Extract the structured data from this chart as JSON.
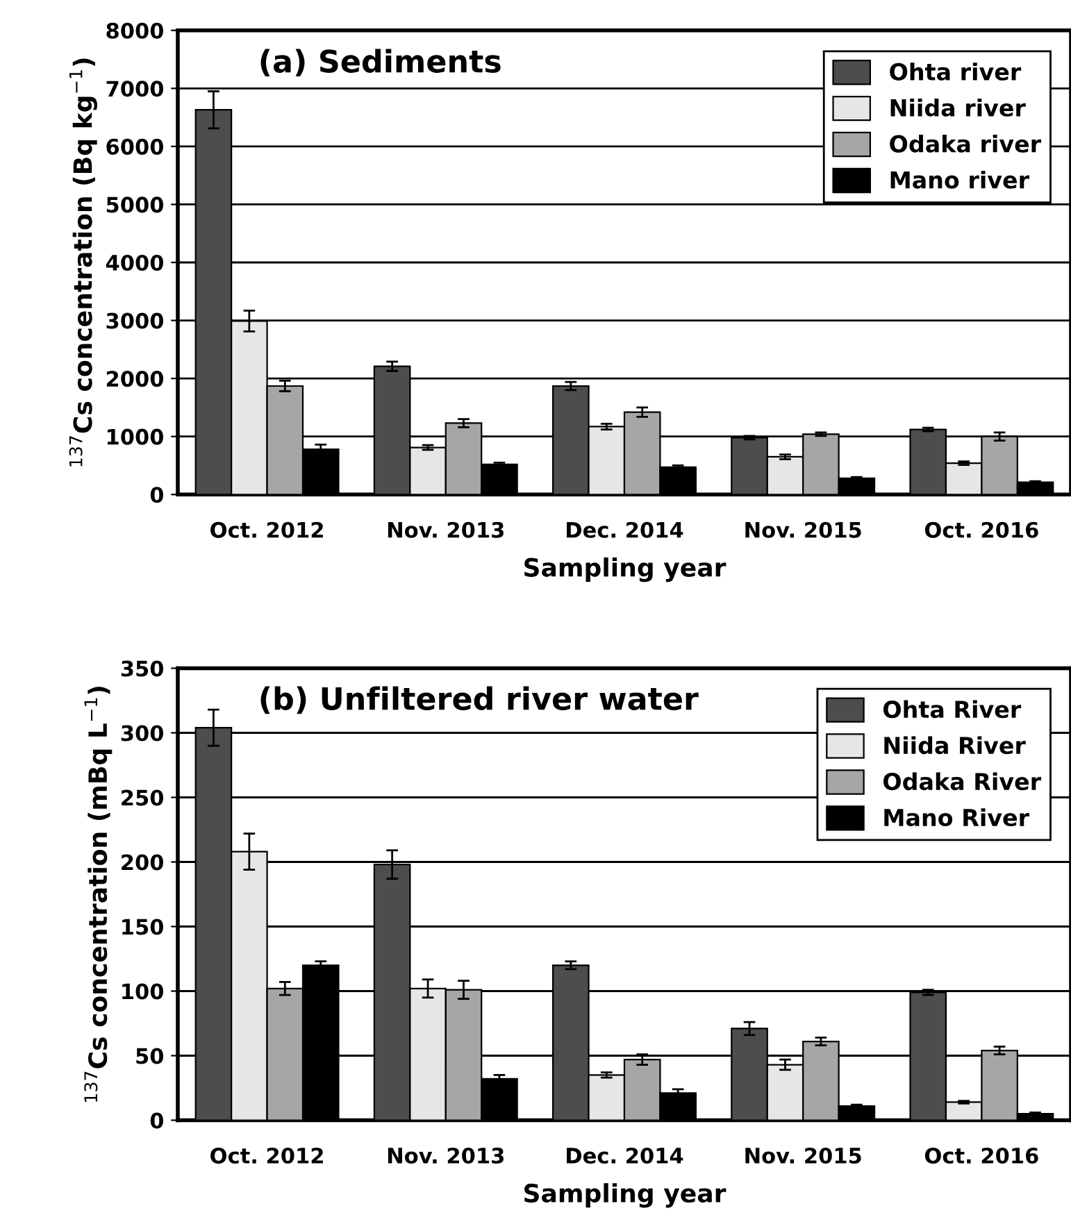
{
  "chart_data": [
    {
      "type": "bar",
      "title": "(a) Sediments",
      "xlabel": "Sampling year",
      "ylabel": "$^{137}$Cs concentration (Bq kg$^{−1}$)",
      "categories": [
        "Oct. 2012",
        "Nov. 2013",
        "Dec. 2014",
        "Nov. 2015",
        "Oct. 2016"
      ],
      "series": [
        {
          "name": "Ohta river",
          "color": "#4d4d4d",
          "values": [
            6630,
            2210,
            1870,
            980,
            1120
          ],
          "errors": [
            320,
            80,
            70,
            30,
            30
          ]
        },
        {
          "name": "Niida river",
          "color": "#e6e6e6",
          "values": [
            2990,
            810,
            1170,
            650,
            540
          ],
          "errors": [
            180,
            40,
            50,
            40,
            30
          ]
        },
        {
          "name": "Odaka river",
          "color": "#a6a6a6",
          "values": [
            1870,
            1230,
            1420,
            1040,
            1000
          ],
          "errors": [
            90,
            70,
            80,
            30,
            70
          ]
        },
        {
          "name": "Mano river",
          "color": "#000000",
          "values": [
            780,
            520,
            470,
            280,
            210
          ],
          "errors": [
            80,
            30,
            30,
            20,
            20
          ]
        }
      ],
      "ylim": [
        0,
        8000
      ],
      "yticks": [
        0,
        1000,
        2000,
        3000,
        4000,
        5000,
        6000,
        7000,
        8000
      ],
      "grid": "y",
      "legend": "top right"
    },
    {
      "type": "bar",
      "title": "(b) Unfiltered river water",
      "xlabel": "Sampling year",
      "ylabel": "$^{137}$Cs concentration (mBq L$^{−1}$)",
      "categories": [
        "Oct. 2012",
        "Nov. 2013",
        "Dec. 2014",
        "Nov. 2015",
        "Oct. 2016"
      ],
      "series": [
        {
          "name": "Ohta River",
          "color": "#4d4d4d",
          "values": [
            304,
            198,
            120,
            71,
            99
          ],
          "errors": [
            14,
            11,
            3,
            5,
            2
          ]
        },
        {
          "name": "Niida River",
          "color": "#e6e6e6",
          "values": [
            208,
            102,
            35,
            43,
            14
          ],
          "errors": [
            14,
            7,
            2,
            4,
            1
          ]
        },
        {
          "name": "Odaka River",
          "color": "#a6a6a6",
          "values": [
            102,
            101,
            47,
            61,
            54
          ],
          "errors": [
            5,
            7,
            4,
            3,
            3
          ]
        },
        {
          "name": "Mano River",
          "color": "#000000",
          "values": [
            120,
            32,
            21,
            11,
            5
          ],
          "errors": [
            3,
            3,
            3,
            1,
            1
          ]
        }
      ],
      "ylim": [
        0,
        350
      ],
      "yticks": [
        0,
        50,
        100,
        150,
        200,
        250,
        300,
        350
      ],
      "grid": "y",
      "legend": "top right"
    }
  ]
}
